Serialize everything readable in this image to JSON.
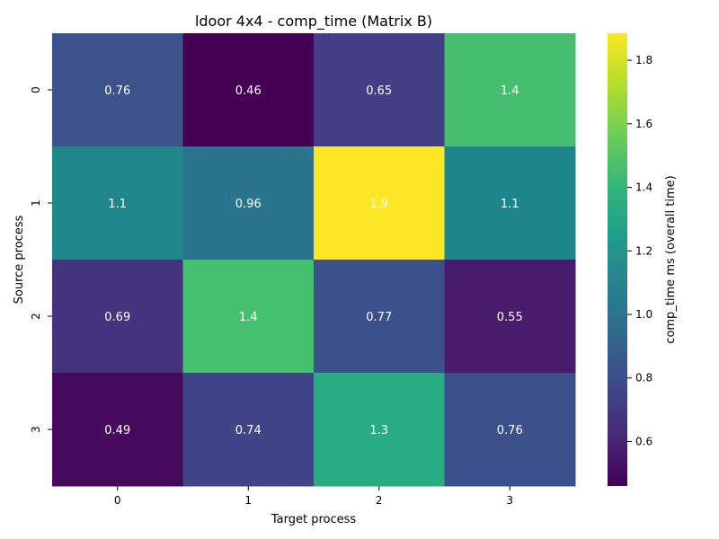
{
  "chart_data": {
    "type": "heatmap",
    "title": "ldoor 4x4 - comp_time (Matrix B)",
    "xlabel": "Target process",
    "ylabel": "Source process",
    "x_categories": [
      "0",
      "1",
      "2",
      "3"
    ],
    "y_categories": [
      "0",
      "1",
      "2",
      "3"
    ],
    "values": [
      [
        0.76,
        0.46,
        0.65,
        1.4
      ],
      [
        1.1,
        0.96,
        1.9,
        1.1
      ],
      [
        0.69,
        1.4,
        0.77,
        0.55
      ],
      [
        0.49,
        0.74,
        1.3,
        0.76
      ]
    ],
    "labels": [
      [
        "0.76",
        "0.46",
        "0.65",
        "1.4"
      ],
      [
        "1.1",
        "0.96",
        "1.9",
        "1.1"
      ],
      [
        "0.69",
        "1.4",
        "0.77",
        "0.55"
      ],
      [
        "0.49",
        "0.74",
        "1.3",
        "0.76"
      ]
    ],
    "colorbar": {
      "label": "comp_time ms (overall time)",
      "min": 0.46,
      "max": 1.885,
      "ticks": [
        0.6,
        0.8,
        1.0,
        1.2,
        1.4,
        1.6,
        1.8
      ],
      "tick_labels": [
        "0.6",
        "0.8",
        "1.0",
        "1.2",
        "1.4",
        "1.6",
        "1.8"
      ],
      "colormap": "viridis"
    },
    "cell_colors": [
      [
        "#3b528b",
        "#440154",
        "#433e85",
        "#45bf6f"
      ],
      [
        "#1f868b",
        "#2b748e",
        "#fde725",
        "#1f858c"
      ],
      [
        "#46337e",
        "#45c06f",
        "#3b518b",
        "#481b6d"
      ],
      [
        "#450a5c",
        "#414587",
        "#27ad81",
        "#3c508b"
      ]
    ],
    "grid": false,
    "legend": "colorbar-right"
  }
}
